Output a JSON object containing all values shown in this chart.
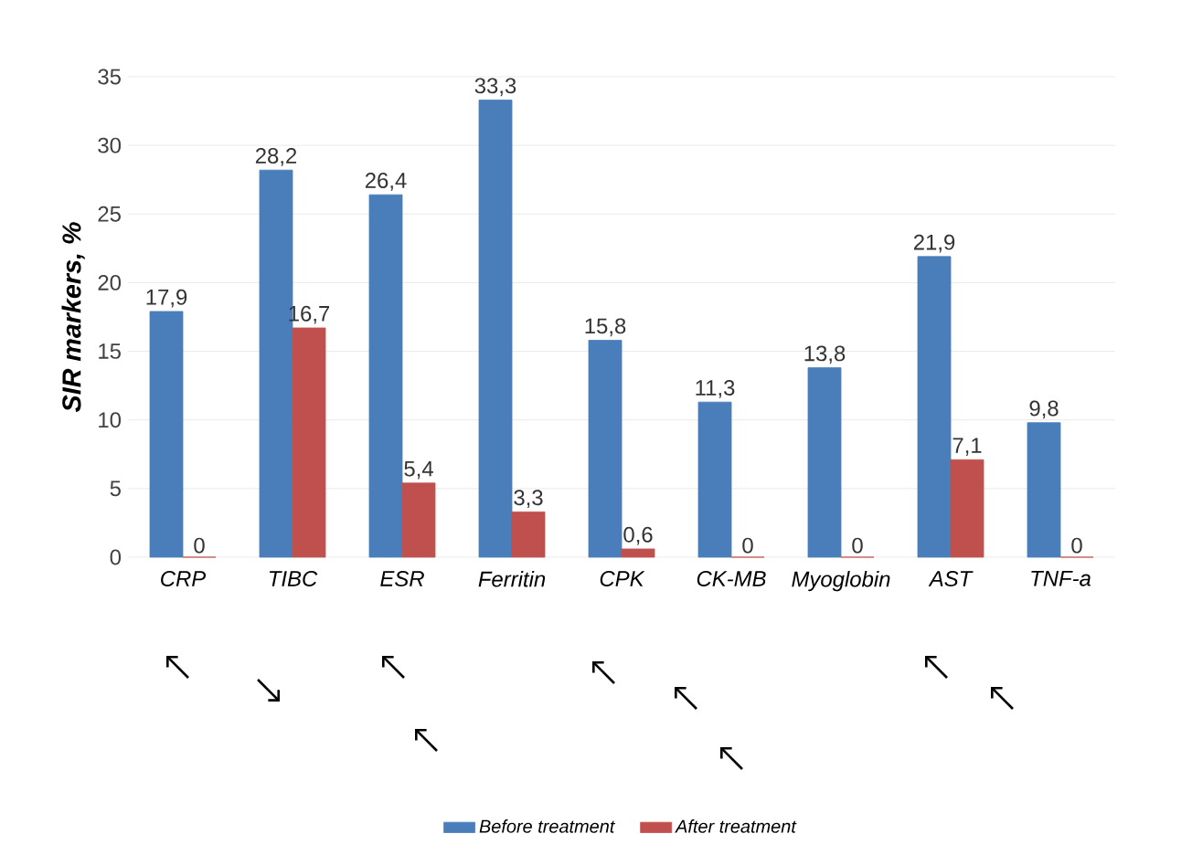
{
  "chart_data": {
    "type": "bar",
    "ylabel": "SIR markers, %",
    "categories": [
      "CRP",
      "TIBC",
      "ESR",
      "Ferritin",
      "CPK",
      "CK-MB",
      "Myoglobin",
      "AST",
      "TNF-a"
    ],
    "series": [
      {
        "name": "Before treatment",
        "color": "#4a7ebb",
        "values": [
          17.9,
          28.2,
          26.4,
          33.3,
          15.8,
          11.3,
          13.8,
          21.9,
          9.8
        ],
        "value_labels": [
          "17,9",
          "28,2",
          "26,4",
          "33,3",
          "15,8",
          "11,3",
          "13,8",
          "21,9",
          "9,8"
        ]
      },
      {
        "name": "After treatment",
        "color": "#c0504d",
        "values": [
          0,
          16.7,
          5.4,
          3.3,
          0.6,
          0,
          0,
          7.1,
          0
        ],
        "value_labels": [
          "0",
          "16,7",
          "5,4",
          "3,3",
          "0,6",
          "0",
          "0",
          "7,1",
          "0"
        ]
      }
    ],
    "ylim": [
      0,
      35
    ],
    "yticks": [
      0,
      5,
      10,
      15,
      20,
      25,
      30,
      35
    ],
    "grid": "y",
    "legend": "bottom"
  }
}
